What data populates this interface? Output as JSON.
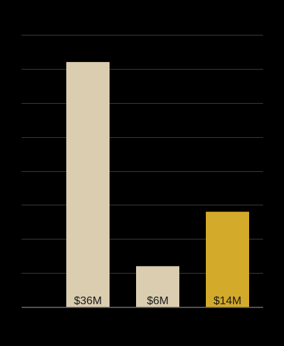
{
  "chart_data": {
    "type": "bar",
    "title": "",
    "xlabel": "",
    "ylabel": "",
    "categories": [
      "",
      "",
      ""
    ],
    "values": [
      36,
      6,
      14
    ],
    "data_labels": [
      "$36M",
      "$6M",
      "$14M"
    ],
    "ylim": [
      0,
      40
    ],
    "gridlines": true,
    "grid_step": 5,
    "legend": "none",
    "colors": {
      "background": "#000000",
      "gridline": "#3a3a3a",
      "bars": [
        "#dbcdb0",
        "#dbcdb0",
        "#d4aa2b"
      ],
      "label_text": "#1a1a1a"
    }
  }
}
